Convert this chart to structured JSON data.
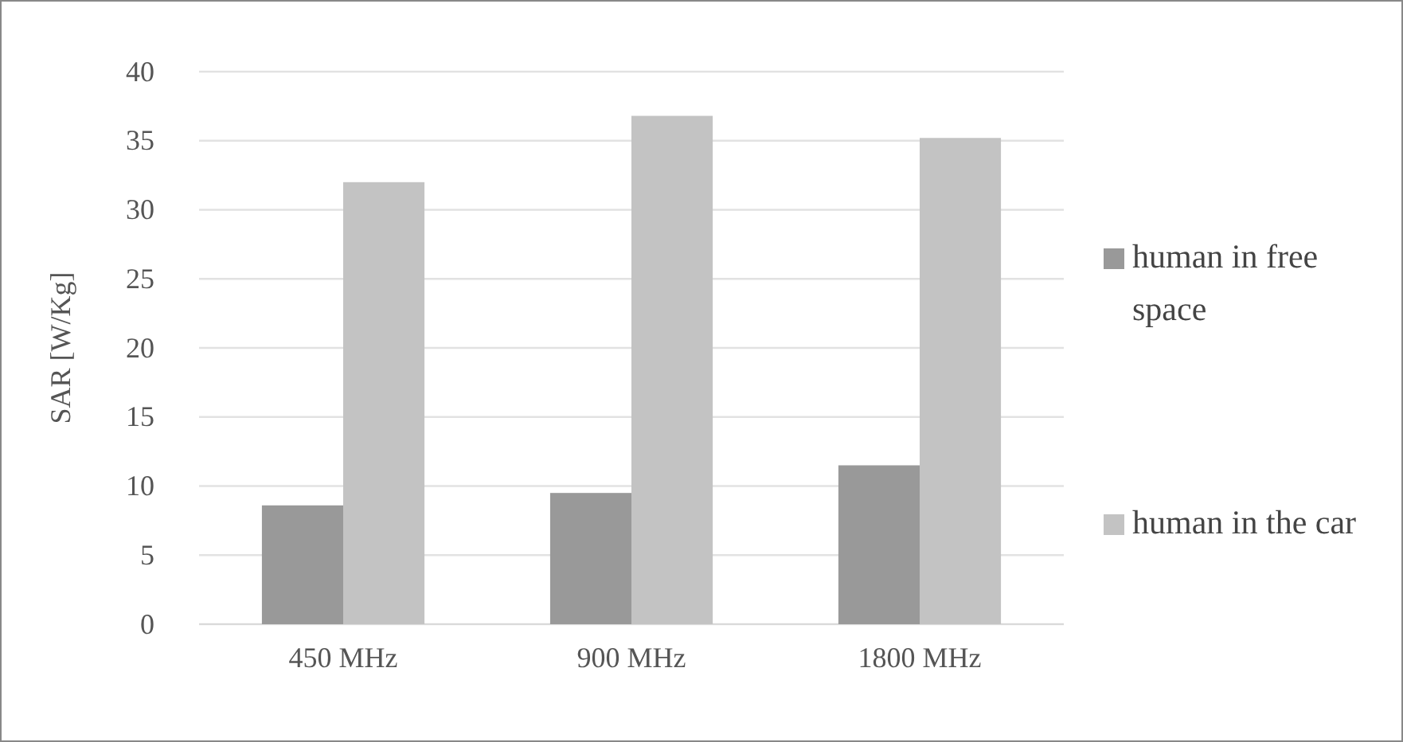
{
  "chart_data": {
    "type": "bar",
    "ylabel": "SAR [W/Kg]",
    "categories": [
      "450 MHz",
      "900 MHz",
      "1800 MHz"
    ],
    "series": [
      {
        "name": "human in free space",
        "color": "#999999",
        "values": [
          8.6,
          9.5,
          11.5
        ]
      },
      {
        "name": "human in the car",
        "color": "#c3c3c3",
        "values": [
          32.0,
          36.8,
          35.2
        ]
      }
    ],
    "ylim": [
      0,
      40
    ],
    "yticks": [
      0,
      5,
      10,
      15,
      20,
      25,
      30,
      35,
      40
    ],
    "grid": "y",
    "legend": "right"
  }
}
